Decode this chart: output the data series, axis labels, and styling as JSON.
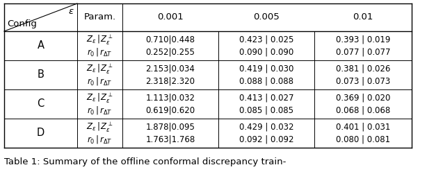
{
  "title": "Table 1: Summary of the offline conformal discrepancy train-",
  "header_row": [
    "Param.",
    "0.001",
    "0.005",
    "0.01"
  ],
  "col_header_left": "Config",
  "col_header_right": "ϵ",
  "configs": [
    "A",
    "B",
    "C",
    "D"
  ],
  "data": {
    "A": {
      "row1": [
        "0.710|0.448",
        "0.423 | 0.025",
        "0.393 | 0.019"
      ],
      "row2": [
        "0.252|0.255",
        "0.090 | 0.090",
        "0.077 | 0.077"
      ]
    },
    "B": {
      "row1": [
        "2.153|0.034",
        "0.419 | 0.030",
        "0.381 | 0.026"
      ],
      "row2": [
        "2.318|2.320",
        "0.088 | 0.088",
        "0.073 | 0.073"
      ]
    },
    "C": {
      "row1": [
        "1.113|0.032",
        "0.413 | 0.027",
        "0.369 | 0.020"
      ],
      "row2": [
        "0.619|0.620",
        "0.085 | 0.085",
        "0.068 | 0.068"
      ]
    },
    "D": {
      "row1": [
        "1.878|0.095",
        "0.429 | 0.032",
        "0.401 | 0.031"
      ],
      "row2": [
        "1.763|1.768",
        "0.092 | 0.092",
        "0.080 | 0.081"
      ]
    }
  },
  "bg_color": "#ffffff",
  "line_color": "#000000",
  "text_color": "#000000",
  "fontsize": 8.5,
  "caption_fontsize": 9.5
}
